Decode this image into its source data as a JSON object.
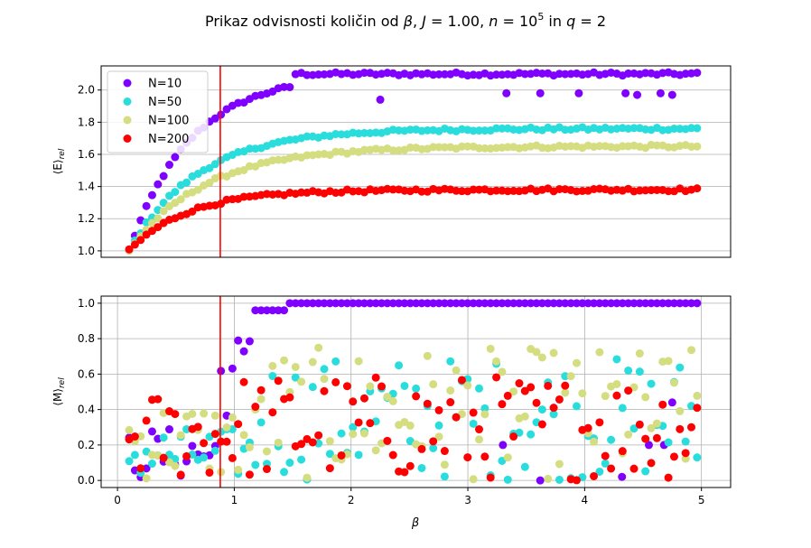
{
  "title": {
    "prefix": "Prikaz odvisnosti količin od ",
    "beta": "β",
    "sep1": ", ",
    "J": "J",
    "eq_J": " = 1.00, ",
    "n": "n",
    "eq_n": " = 10",
    "n_exp": "5",
    "in": " in ",
    "q": "q",
    "eq_q": " = 2"
  },
  "colors": {
    "N10": "#8000ff",
    "N50": "#2adddd",
    "N100": "#d4dd80",
    "N200": "#ff0000",
    "vline": "#ff0000",
    "grid": "#b0b0b0"
  },
  "chart_data": [
    {
      "type": "scatter",
      "name": "energy",
      "ylabel": "⟨E⟩",
      "ylabel_sub": "rel",
      "xlabel": "",
      "xlim": [
        -0.14,
        5.25
      ],
      "ylim": [
        0.96,
        2.15
      ],
      "yticks": [
        1.0,
        1.2,
        1.4,
        1.6,
        1.8,
        2.0
      ],
      "ytick_labels": [
        "1.0",
        "1.2",
        "1.4",
        "1.6",
        "1.8",
        "2.0"
      ],
      "grid": "y",
      "legend": "top-left",
      "vline": 0.88,
      "series": [
        {
          "name": "N=10",
          "color_key": "N10",
          "plateau": 2.1,
          "dips": [
            [
              2.25,
              1.94
            ],
            [
              3.33,
              1.98
            ],
            [
              3.62,
              1.98
            ],
            [
              3.95,
              1.98
            ],
            [
              4.35,
              1.98
            ],
            [
              4.45,
              1.97
            ],
            [
              4.65,
              1.98
            ],
            [
              4.75,
              1.97
            ]
          ]
        },
        {
          "name": "N=50",
          "color_key": "N50",
          "plateau": 1.76
        },
        {
          "name": "N=100",
          "color_key": "N100",
          "plateau": 1.65
        },
        {
          "name": "N=200",
          "color_key": "N200",
          "plateau": 1.38
        }
      ]
    },
    {
      "type": "scatter",
      "name": "magnetization",
      "ylabel": "⟨M⟩",
      "ylabel_sub": "rel",
      "xlabel": "β",
      "xlim": [
        -0.14,
        5.25
      ],
      "ylim": [
        -0.04,
        1.04
      ],
      "xticks": [
        0,
        1,
        2,
        3,
        4,
        5
      ],
      "xtick_labels": [
        "0",
        "1",
        "2",
        "3",
        "4",
        "5"
      ],
      "yticks": [
        0.0,
        0.2,
        0.4,
        0.6,
        0.8,
        1.0
      ],
      "ytick_labels": [
        "0.0",
        "0.2",
        "0.4",
        "0.6",
        "0.8",
        "1.0"
      ],
      "grid": "both",
      "vline": 0.88,
      "series": [
        {
          "name": "N=10",
          "color_key": "N10",
          "plateau": 1.0,
          "dips": [
            [
              3.3,
              0.2
            ],
            [
              3.62,
              0.0
            ],
            [
              4.32,
              0.02
            ],
            [
              4.55,
              0.2
            ],
            [
              4.68,
              0.2
            ],
            [
              4.75,
              0.44
            ]
          ]
        },
        {
          "name": "N=50",
          "color_key": "N50"
        },
        {
          "name": "N=100",
          "color_key": "N100"
        },
        {
          "name": "N=200",
          "color_key": "N200"
        }
      ]
    }
  ]
}
